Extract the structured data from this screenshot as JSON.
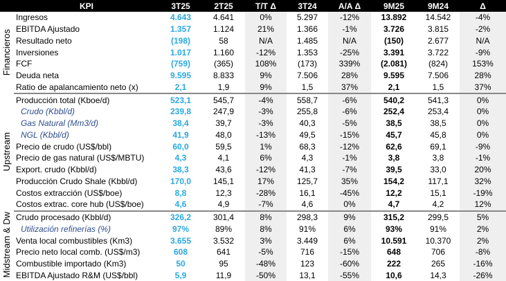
{
  "headers": [
    "KPI",
    "3T25",
    "2T25",
    "T/T Δ",
    "3T24",
    "A/A Δ",
    "9M25",
    "9M24",
    "Δ"
  ],
  "sections": [
    {
      "name": "Financieros",
      "rows": [
        {
          "label": "Ingresos",
          "sub": false,
          "cells": [
            "4.643",
            "4.641",
            "0%",
            "5.297",
            "-12%",
            "13.892",
            "14.542",
            "-4%"
          ]
        },
        {
          "label": "EBITDA Ajustado",
          "sub": false,
          "cells": [
            "1.357",
            "1.124",
            "21%",
            "1.366",
            "-1%",
            "3.726",
            "3.815",
            "-2%"
          ]
        },
        {
          "label": "Resultado neto",
          "sub": false,
          "cells": [
            "(198)",
            "58",
            "N/A",
            "1.485",
            "N/A",
            "(150)",
            "2.677",
            "N/A"
          ]
        },
        {
          "label": "Inversiones",
          "sub": false,
          "cells": [
            "1.017",
            "1.160",
            "-12%",
            "1.353",
            "-25%",
            "3.391",
            "3.722",
            "-9%"
          ]
        },
        {
          "label": "FCF",
          "sub": false,
          "cells": [
            "(759)",
            "(365)",
            "108%",
            "(173)",
            "339%",
            "(2.081)",
            "(824)",
            "153%"
          ]
        },
        {
          "label": "Deuda neta",
          "sub": false,
          "cells": [
            "9.595",
            "8.833",
            "9%",
            "7.506",
            "28%",
            "9.595",
            "7.506",
            "28%"
          ]
        },
        {
          "label": "Ratio de apalancamiento neto (x)",
          "sub": false,
          "cells": [
            "2,1",
            "1,9",
            "9%",
            "1,5",
            "37%",
            "2,1",
            "1,5",
            "37%"
          ]
        }
      ]
    },
    {
      "name": "Upstream",
      "rows": [
        {
          "label": "Producción total (Kboe/d)",
          "sub": false,
          "cells": [
            "523,1",
            "545,7",
            "-4%",
            "558,7",
            "-6%",
            "540,2",
            "541,3",
            "0%"
          ]
        },
        {
          "label": "Crudo (Kbbl/d)",
          "sub": true,
          "cells": [
            "239,8",
            "247,9",
            "-3%",
            "255,8",
            "-6%",
            "252,4",
            "253,4",
            "0%"
          ]
        },
        {
          "label": "Gas Natural (Mm3/d)",
          "sub": true,
          "cells": [
            "38,4",
            "39,7",
            "-3%",
            "40,3",
            "-5%",
            "38,5",
            "38,5",
            "0%"
          ]
        },
        {
          "label": "NGL (Kbbl/d)",
          "sub": true,
          "cells": [
            "41,9",
            "48,0",
            "-13%",
            "49,5",
            "-15%",
            "45,7",
            "45,8",
            "0%"
          ]
        },
        {
          "label": "Precio de crudo (US$/bbl)",
          "sub": false,
          "cells": [
            "60,0",
            "59,5",
            "1%",
            "68,3",
            "-12%",
            "62,6",
            "69,1",
            "-9%"
          ]
        },
        {
          "label": "Precio de gas natural (US$/MBTU)",
          "sub": false,
          "cells": [
            "4,3",
            "4,1",
            "6%",
            "4,3",
            "-1%",
            "3,8",
            "3,8",
            "-1%"
          ]
        },
        {
          "label": "Export. crudo (Kbbl/d)",
          "sub": false,
          "cells": [
            "38,3",
            "43,6",
            "-12%",
            "41,3",
            "-7%",
            "39,5",
            "33,0",
            "20%"
          ]
        },
        {
          "label": "Producción Crudo Shale (Kbbl/d)",
          "sub": false,
          "cells": [
            "170,0",
            "145,1",
            "17%",
            "125,7",
            "35%",
            "154,2",
            "117,1",
            "32%"
          ]
        },
        {
          "label": "Costos extracción (US$/boe)",
          "sub": false,
          "cells": [
            "8,8",
            "12,3",
            "-28%",
            "16,1",
            "-45%",
            "12,2",
            "15,1",
            "-19%"
          ]
        },
        {
          "label": "Costos extrac. core hub (US$/boe)",
          "sub": false,
          "cells": [
            "4,6",
            "4,9",
            "-7%",
            "4,6",
            "0%",
            "4,7",
            "4,2",
            "12%"
          ]
        }
      ]
    },
    {
      "name": "Midstream & Dw",
      "rows": [
        {
          "label": "Crudo procesado (Kbbl/d)",
          "sub": false,
          "cells": [
            "326,2",
            "301,4",
            "8%",
            "298,3",
            "9%",
            "315,2",
            "299,5",
            "5%"
          ]
        },
        {
          "label": "Utilización refinerías (%)",
          "sub": true,
          "cells": [
            "97%",
            "89%",
            "8%",
            "91%",
            "6%",
            "93%",
            "91%",
            "2%"
          ]
        },
        {
          "label": "Venta local combustibles (Km3)",
          "sub": false,
          "cells": [
            "3.655",
            "3.532",
            "3%",
            "3.449",
            "6%",
            "10.591",
            "10.370",
            "2%"
          ]
        },
        {
          "label": "Precio neto local comb. (US$/m3)",
          "sub": false,
          "cells": [
            "608",
            "641",
            "-5%",
            "716",
            "-15%",
            "648",
            "706",
            "-8%"
          ]
        },
        {
          "label": "Combustible importado (Km3)",
          "sub": false,
          "cells": [
            "50",
            "95",
            "-48%",
            "123",
            "-60%",
            "222",
            "265",
            "-16%"
          ]
        },
        {
          "label": "EBITDA Ajustado R&M (US$/bbl)",
          "sub": false,
          "cells": [
            "5,9",
            "11,9",
            "-50%",
            "13,1",
            "-55%",
            "10,6",
            "14,3",
            "-26%"
          ]
        }
      ]
    }
  ]
}
